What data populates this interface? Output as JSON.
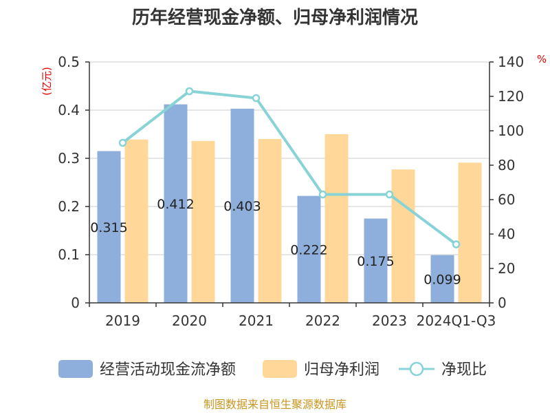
{
  "chart_data": {
    "type": "bar",
    "title": "历年经营现金净额、归母净利润情况",
    "left_unit": "(亿元)",
    "right_unit": "%",
    "categories": [
      "2019",
      "2020",
      "2021",
      "2022",
      "2023",
      "2024Q1-Q3"
    ],
    "series": [
      {
        "name": "经营活动现金流净额",
        "kind": "bar",
        "axis": "left",
        "color": "#8eaedb",
        "values": [
          0.315,
          0.412,
          0.403,
          0.222,
          0.175,
          0.099
        ],
        "labels": [
          "0.315",
          "0.412",
          "0.403",
          "0.222",
          "0.175",
          "0.099"
        ]
      },
      {
        "name": "归母净利润",
        "kind": "bar",
        "axis": "left",
        "color": "#ffd899",
        "values": [
          0.339,
          0.336,
          0.34,
          0.35,
          0.277,
          0.291
        ]
      },
      {
        "name": "净现比",
        "kind": "line",
        "axis": "right",
        "color": "#87d3d6",
        "values": [
          93,
          123,
          119,
          63,
          63,
          34
        ]
      }
    ],
    "y_left": {
      "min": 0,
      "max": 0.5,
      "ticks": [
        "0",
        "0.1",
        "0.2",
        "0.3",
        "0.4",
        "0.5"
      ]
    },
    "y_right": {
      "min": 0,
      "max": 140,
      "ticks": [
        "0",
        "20",
        "40",
        "60",
        "80",
        "100",
        "120",
        "140"
      ]
    },
    "grid": true,
    "legend_position": "bottom"
  },
  "source": "制图数据来自恒生聚源数据库"
}
